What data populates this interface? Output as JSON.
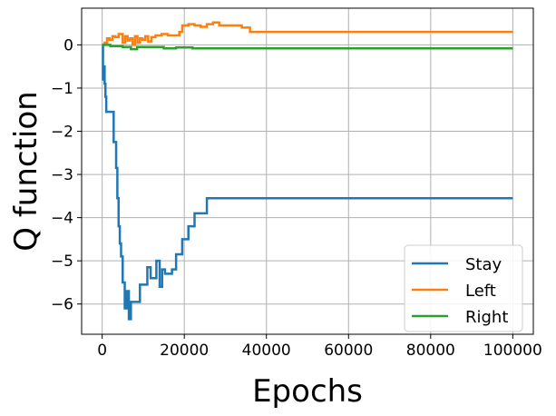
{
  "chart_data": {
    "type": "line",
    "title": "",
    "xlabel": "Epochs",
    "ylabel": "Q function",
    "xlim": [
      -5000,
      105000
    ],
    "ylim": [
      -6.7,
      0.85
    ],
    "xticks": [
      0,
      20000,
      40000,
      60000,
      80000,
      100000
    ],
    "yticks": [
      0,
      -1,
      -2,
      -3,
      -4,
      -5,
      -6
    ],
    "xtick_labels": [
      "0",
      "20000",
      "40000",
      "60000",
      "80000",
      "100000"
    ],
    "ytick_labels": [
      "0",
      "−1",
      "−2",
      "−3",
      "−4",
      "−5",
      "−6"
    ],
    "grid": true,
    "legend_position": "bottom-right",
    "series": [
      {
        "name": "Stay",
        "color": "#1f77b4",
        "step": true,
        "x": [
          0,
          200,
          400,
          600,
          800,
          1000,
          1500,
          2800,
          3400,
          3700,
          4000,
          4300,
          4600,
          5000,
          5500,
          6000,
          6500,
          7000,
          7800,
          8500,
          9200,
          10000,
          11000,
          11800,
          12500,
          13200,
          14000,
          14600,
          15300,
          16000,
          17000,
          18000,
          19500,
          21000,
          22500,
          24000,
          25500,
          100000
        ],
        "y": [
          0,
          -0.8,
          -0.5,
          -0.9,
          -1.2,
          -1.55,
          -1.55,
          -2.25,
          -2.85,
          -3.55,
          -4.2,
          -4.6,
          -4.9,
          -5.5,
          -6.1,
          -5.7,
          -6.35,
          -5.95,
          -5.95,
          -5.95,
          -5.55,
          -5.55,
          -5.15,
          -5.4,
          -5.4,
          -5.0,
          -5.6,
          -5.2,
          -5.3,
          -5.3,
          -5.2,
          -4.85,
          -4.5,
          -4.2,
          -3.9,
          -3.9,
          -3.55,
          -3.55
        ]
      },
      {
        "name": "Left",
        "color": "#ff7f0e",
        "step": true,
        "x": [
          0,
          600,
          1200,
          1800,
          2500,
          3200,
          4000,
          5000,
          5600,
          6200,
          6800,
          7400,
          8000,
          8600,
          9200,
          9800,
          10500,
          11200,
          12000,
          13000,
          14500,
          16000,
          17500,
          18800,
          19500,
          21000,
          22500,
          24000,
          25500,
          27000,
          28500,
          31000,
          34000,
          36000,
          100000
        ],
        "y": [
          0,
          0.05,
          0.15,
          0.12,
          0.2,
          0.18,
          0.25,
          0.05,
          0.2,
          0.1,
          0.15,
          0.0,
          0.2,
          0.05,
          0.15,
          0.12,
          0.2,
          0.08,
          0.18,
          0.22,
          0.25,
          0.22,
          0.22,
          0.3,
          0.45,
          0.48,
          0.45,
          0.42,
          0.48,
          0.52,
          0.45,
          0.45,
          0.4,
          0.3,
          0.3
        ]
      },
      {
        "name": "Right",
        "color": "#2ca02c",
        "step": true,
        "x": [
          0,
          2000,
          5000,
          7000,
          8500,
          10000,
          13000,
          15000,
          18000,
          20000,
          22000,
          100000
        ],
        "y": [
          0,
          -0.03,
          -0.05,
          -0.1,
          -0.05,
          -0.05,
          -0.05,
          -0.08,
          -0.06,
          -0.06,
          -0.08,
          -0.08
        ]
      }
    ]
  }
}
